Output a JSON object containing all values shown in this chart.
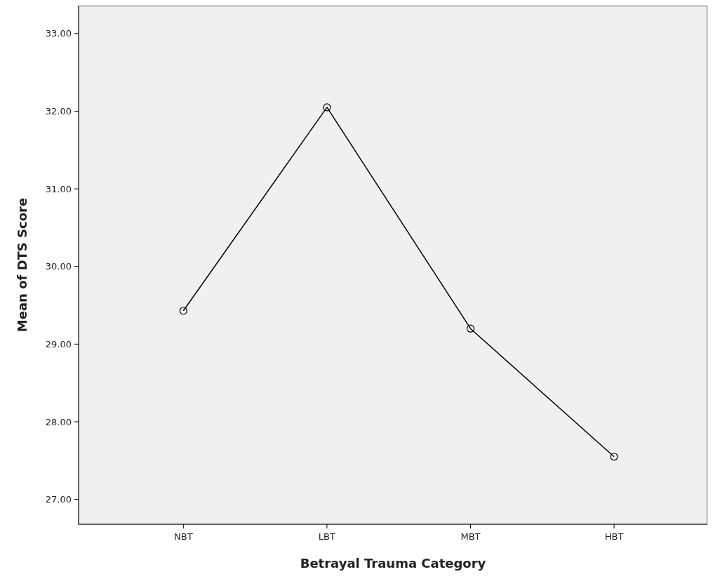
{
  "chart_data": {
    "type": "line",
    "xlabel": "Betrayal Trauma Category",
    "ylabel": "Mean of DTS Score",
    "categories": [
      "NBT",
      "LBT",
      "MBT",
      "HBT"
    ],
    "series": [
      {
        "color": "#000000",
        "values": [
          29.43,
          32.05,
          29.2,
          27.55
        ]
      }
    ],
    "ylim": [
      26.68,
      33.36
    ],
    "yticks": [
      {
        "value": 27,
        "label": "27.00"
      },
      {
        "value": 28,
        "label": "28.00"
      },
      {
        "value": 29,
        "label": "29.00"
      },
      {
        "value": 30,
        "label": "30.00"
      },
      {
        "value": 31,
        "label": "31.00"
      },
      {
        "value": 32,
        "label": "32.00"
      },
      {
        "value": 33,
        "label": "33.00"
      }
    ],
    "marker": "circle",
    "line_style": "solid"
  }
}
